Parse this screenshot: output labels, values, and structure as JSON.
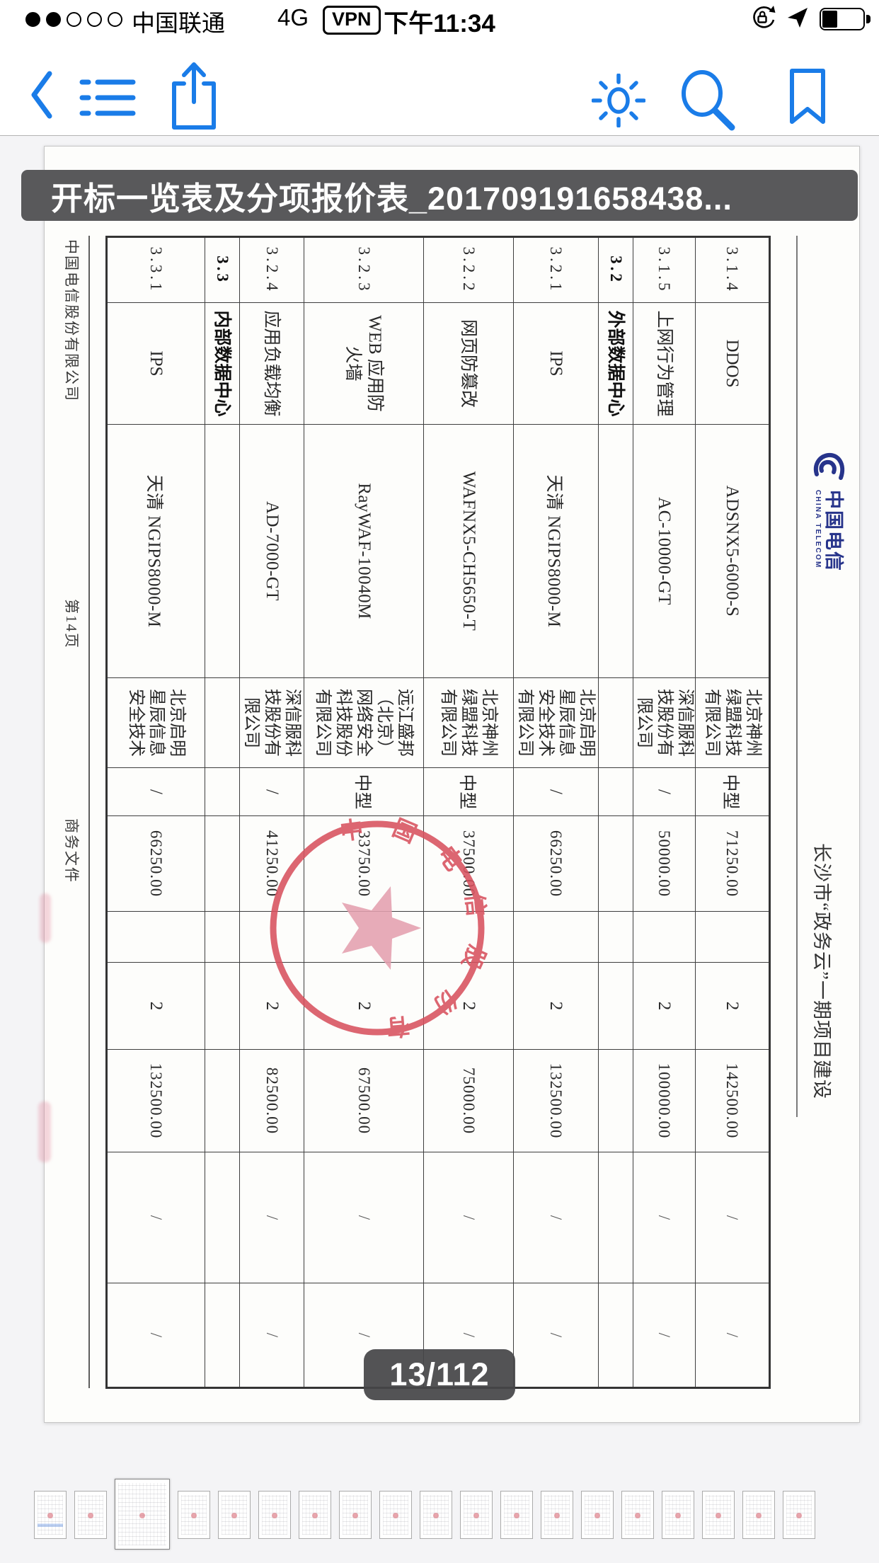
{
  "status_bar": {
    "signal_filled": 2,
    "signal_total": 5,
    "carrier": "中国联通",
    "network": "4G",
    "vpn_label": "VPN",
    "time": "下午11:34",
    "right_icons": [
      "rotation-lock-icon",
      "location-arrow-icon",
      "battery-icon"
    ],
    "battery_percent_visual": 35
  },
  "toolbar": {
    "icons": [
      "back",
      "outline-list",
      "share",
      "brightness",
      "search",
      "bookmark"
    ],
    "accent_color": "#1a7ce8"
  },
  "doc_title_bar": {
    "filename": "开标一览表及分项报价表_201709191658438..."
  },
  "document": {
    "header": {
      "logo_cn": "中国电信",
      "logo_en": "CHINA TELECOM",
      "project_title": "长沙市“政务云”一期项目建设"
    },
    "table": {
      "rows": [
        {
          "cells": [
            "3.1.4",
            "DDOS",
            "ADSNX5-6000-S",
            "北京神州绿盟科技有限公司",
            "中型",
            "71250.00",
            "",
            "2",
            "142500.00",
            "/",
            "/"
          ],
          "bold": false
        },
        {
          "cells": [
            "3.1.5",
            "上网行为管理",
            "AC-10000-GT",
            "深信服科技股份有限公司",
            "/",
            "50000.00",
            "",
            "2",
            "100000.00",
            "/",
            "/"
          ],
          "bold": false
        },
        {
          "cells": [
            "3.2",
            "外部数据中心",
            "",
            "",
            "",
            "",
            "",
            "",
            "",
            "",
            ""
          ],
          "bold": true
        },
        {
          "cells": [
            "3.2.1",
            "IPS",
            "天清 NGIPS8000-M",
            "北京启明星辰信息安全技术有限公司",
            "/",
            "66250.00",
            "",
            "2",
            "132500.00",
            "/",
            "/"
          ],
          "bold": false
        },
        {
          "cells": [
            "3.2.2",
            "网页防篡改",
            "WAFNX5-CH5650-T",
            "北京神州绿盟科技有限公司",
            "中型",
            "37500.00",
            "",
            "2",
            "75000.00",
            "/",
            "/"
          ],
          "bold": false
        },
        {
          "cells": [
            "3.2.3",
            "WEB 应用防火墙",
            "RayWAF-10040M",
            "远江盛邦（北京）网络安全科技股份有限公司",
            "中型",
            "33750.00",
            "",
            "2",
            "67500.00",
            "/",
            "/"
          ],
          "bold": false
        },
        {
          "cells": [
            "3.2.4",
            "应用负载均衡",
            "AD-7000-GT",
            "深信服科技股份有限公司",
            "/",
            "41250.00",
            "",
            "2",
            "82500.00",
            "/",
            "/"
          ],
          "bold": false
        },
        {
          "cells": [
            "3.3",
            "内部数据中心",
            "",
            "",
            "",
            "",
            "",
            "",
            "",
            "",
            ""
          ],
          "bold": true
        },
        {
          "cells": [
            "3.3.1",
            "IPS",
            "天清 NGIPS8000-M",
            "北京启明星辰信息安全技术",
            "/",
            "66250.00",
            "",
            "2",
            "132500.00",
            "/",
            "/"
          ],
          "bold": false
        }
      ]
    },
    "stamp_text": "中国电信股份有限公司",
    "stamp_color": "#d8525f",
    "footer": {
      "company": "中国电信股份有限公司",
      "page_label": "第14页",
      "doc_type": "商务文件"
    }
  },
  "page_indicator": {
    "label": "13/112"
  },
  "thumbnails": {
    "count": 19,
    "active_index": 3
  }
}
